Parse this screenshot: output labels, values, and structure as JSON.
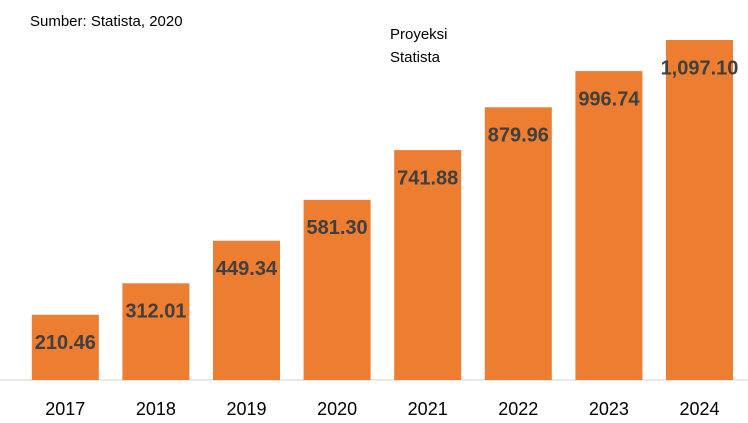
{
  "chart_data": {
    "type": "bar",
    "annotations": [
      {
        "text": "Sumber: Statista, 2020"
      },
      {
        "lines": [
          "Proyeksi",
          "Statista"
        ]
      }
    ],
    "categories": [
      "2017",
      "2018",
      "2019",
      "2020",
      "2021",
      "2022",
      "2023",
      "2024"
    ],
    "values": [
      210.46,
      312.01,
      449.34,
      581.3,
      741.88,
      879.96,
      996.74,
      1097.1
    ],
    "value_labels": [
      "210.46",
      "312.01",
      "449.34",
      "581.30",
      "741.88",
      "879.96",
      "996.74",
      "1,097.10"
    ],
    "color": "#ED7D31"
  }
}
